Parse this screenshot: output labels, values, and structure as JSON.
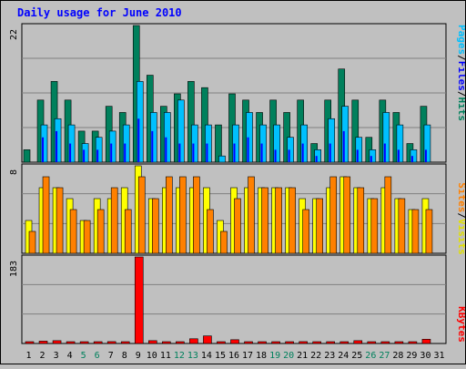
{
  "chart_data": {
    "type": "bar",
    "title": "Daily usage for June 2010",
    "days": [
      "1",
      "2",
      "3",
      "4",
      "5",
      "6",
      "7",
      "8",
      "9",
      "10",
      "11",
      "12",
      "13",
      "14",
      "15",
      "16",
      "17",
      "18",
      "19",
      "20",
      "21",
      "22",
      "23",
      "24",
      "25",
      "26",
      "27",
      "28",
      "29",
      "30",
      "31"
    ],
    "weekend_days": [
      "5",
      "6",
      "12",
      "13",
      "19",
      "20",
      "26",
      "27"
    ],
    "top_panel": {
      "ymax_label": "22",
      "ymax": 22,
      "right_label_parts": [
        "Pages",
        "/",
        "Files",
        "/",
        "Hits"
      ],
      "series": [
        {
          "name": "Hits",
          "color": "#00805c",
          "values": [
            2,
            10,
            13,
            10,
            5,
            5,
            9,
            8,
            22,
            14,
            9,
            11,
            13,
            12,
            6,
            11,
            10,
            8,
            10,
            8,
            10,
            3,
            10,
            15,
            10,
            4,
            10,
            8,
            3,
            9,
            0
          ]
        },
        {
          "name": "Files",
          "color": "#00c0ff",
          "values": [
            0,
            6,
            7,
            6,
            3,
            4,
            5,
            6,
            13,
            8,
            8,
            10,
            6,
            6,
            1,
            6,
            8,
            6,
            6,
            4,
            6,
            2,
            7,
            9,
            4,
            2,
            8,
            6,
            2,
            6,
            0
          ]
        },
        {
          "name": "Pages",
          "color": "#0000ff",
          "values": [
            0,
            4,
            5,
            3,
            2,
            2,
            3,
            3,
            7,
            5,
            4,
            3,
            3,
            3,
            0,
            3,
            4,
            3,
            2,
            2,
            3,
            1,
            3,
            5,
            2,
            1,
            3,
            2,
            1,
            2,
            0
          ]
        }
      ]
    },
    "middle_panel": {
      "ymax_label": "8",
      "ymax": 8,
      "right_label_parts": [
        "Sites",
        "/",
        "Visits"
      ],
      "series": [
        {
          "name": "Visits",
          "color": "#ffff00",
          "values": [
            3,
            6,
            6,
            5,
            3,
            5,
            5,
            6,
            8,
            5,
            6,
            6,
            6,
            6,
            3,
            6,
            6,
            6,
            6,
            6,
            5,
            5,
            6,
            7,
            6,
            5,
            6,
            5,
            4,
            5,
            0
          ]
        },
        {
          "name": "Sites",
          "color": "#ff8000",
          "values": [
            2,
            7,
            6,
            4,
            3,
            4,
            6,
            4,
            7,
            5,
            7,
            7,
            7,
            4,
            2,
            5,
            7,
            6,
            6,
            6,
            4,
            5,
            7,
            7,
            6,
            5,
            7,
            5,
            4,
            4,
            0
          ]
        }
      ]
    },
    "bottom_panel": {
      "ymax_label": "183",
      "ymax": 183,
      "right_label": "KBytes",
      "series": [
        {
          "name": "KBytes",
          "color": "#ff0000",
          "values": [
            2,
            5,
            6,
            3,
            3,
            2,
            4,
            3,
            183,
            6,
            3,
            3,
            10,
            16,
            3,
            8,
            3,
            2,
            3,
            3,
            4,
            2,
            3,
            3,
            6,
            2,
            3,
            3,
            2,
            9,
            0
          ]
        }
      ]
    }
  }
}
